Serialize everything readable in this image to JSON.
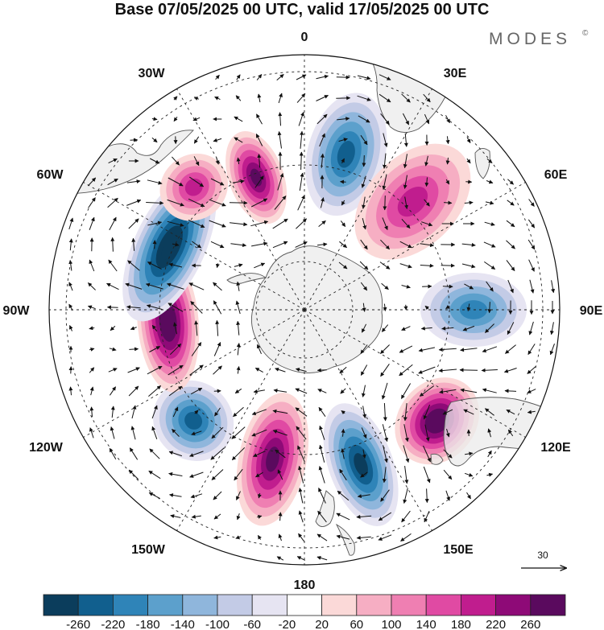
{
  "title": "Base 07/05/2025 00 UTC, valid 17/05/2025 00 UTC",
  "brand": "MODES",
  "brand_mark": "©",
  "longitude_labels": {
    "lon_0": "0",
    "lon_30e": "30E",
    "lon_60e": "60E",
    "lon_90e": "90E",
    "lon_120e": "120E",
    "lon_150e": "150E",
    "lon_180": "180",
    "lon_150w": "150W",
    "lon_120w": "120W",
    "lon_90w": "90W",
    "lon_60w": "60W",
    "lon_30w": "30W"
  },
  "reference_vector": {
    "label": "30"
  },
  "colorbar": {
    "ticks": [
      "-260",
      "-220",
      "-180",
      "-140",
      "-100",
      "-60",
      "-20",
      "20",
      "60",
      "100",
      "140",
      "180",
      "220",
      "260"
    ],
    "colors": [
      "#0b3d5c",
      "#115f8e",
      "#2f84b8",
      "#5ca0cc",
      "#8fb6dc",
      "#c3cbe6",
      "#e6e4f2",
      "#ffffff",
      "#fbd9d8",
      "#f6aec3",
      "#ef7fb2",
      "#e04aa3",
      "#c01d8e",
      "#8e0a77",
      "#5a0a5e"
    ]
  },
  "map": {
    "projection": "south-polar-stereographic",
    "anomaly_centers": [
      {
        "name": "low-south-atlantic",
        "lon": 15,
        "sign": "negative",
        "max": -180
      },
      {
        "name": "high-south-africa",
        "lon": 45,
        "sign": "positive",
        "max": 140
      },
      {
        "name": "low-indian-ocean",
        "lon": 90,
        "sign": "negative",
        "max": -140
      },
      {
        "name": "high-south-australia",
        "lon": 130,
        "sign": "positive",
        "max": 260
      },
      {
        "name": "low-tasman",
        "lon": 160,
        "sign": "negative",
        "max": -220
      },
      {
        "name": "high-pacific-190",
        "lon": 192,
        "sign": "positive",
        "max": 220
      },
      {
        "name": "low-pacific-220",
        "lon": 225,
        "sign": "negative",
        "max": -180
      },
      {
        "name": "high-se-pacific",
        "lon": 265,
        "sign": "positive",
        "max": 260
      },
      {
        "name": "low-southeast-pacific",
        "lon": 295,
        "sign": "negative",
        "max": -260
      },
      {
        "name": "high-drake",
        "lon": 340,
        "sign": "positive",
        "max": 220
      },
      {
        "name": "high-south-america-east",
        "lon": 318,
        "sign": "positive",
        "max": 140
      }
    ]
  }
}
